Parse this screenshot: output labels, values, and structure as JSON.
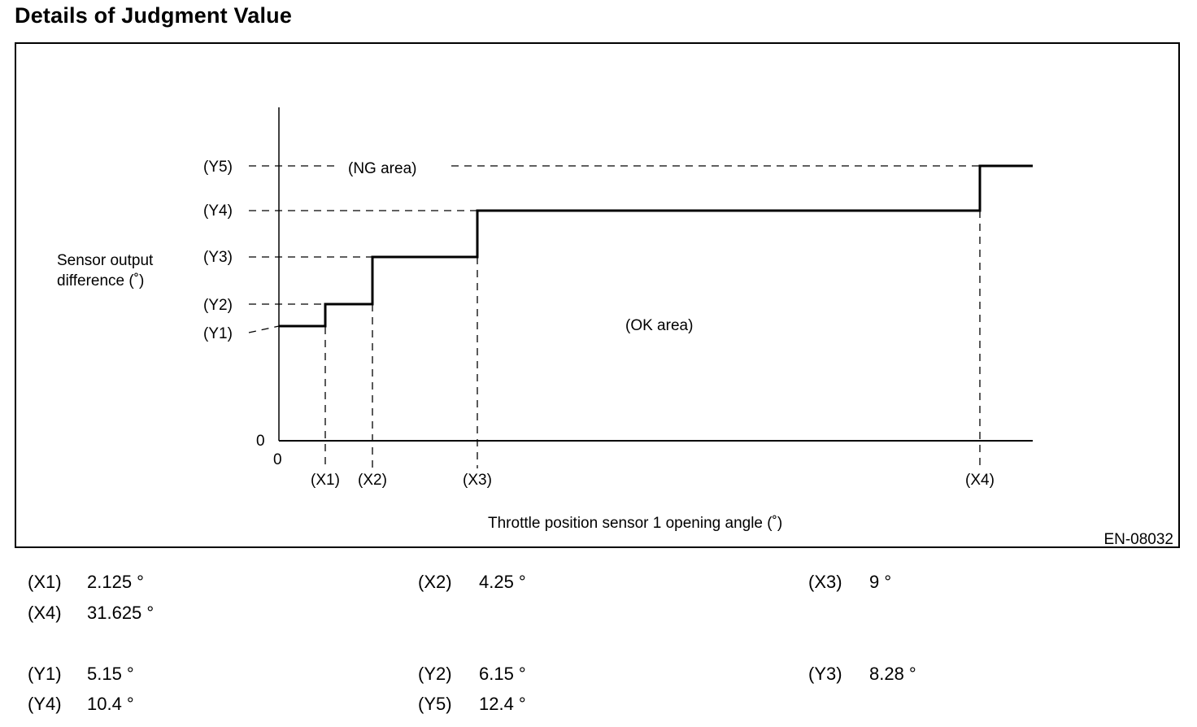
{
  "page": {
    "title": "Details of Judgment Value"
  },
  "diagram": {
    "y_axis_label_line1": "Sensor output",
    "y_axis_label_line2": "difference (˚)",
    "x_axis_label": "Throttle position sensor 1 opening angle (˚)",
    "origin_x_label": "0",
    "origin_y_label": "0",
    "ng_area_label": "(NG area)",
    "ok_area_label": "(OK area)",
    "figure_code": "EN-08032",
    "x_markers": [
      "(X1)",
      "(X2)",
      "(X3)",
      "(X4)"
    ],
    "y_markers": [
      "(Y1)",
      "(Y2)",
      "(Y3)",
      "(Y4)",
      "(Y5)"
    ]
  },
  "values": {
    "x": [
      {
        "label": "(X1)",
        "value": "2.125 °"
      },
      {
        "label": "(X2)",
        "value": "4.25 °"
      },
      {
        "label": "(X3)",
        "value": "9 °"
      },
      {
        "label": "(X4)",
        "value": "31.625 °"
      }
    ],
    "y": [
      {
        "label": "(Y1)",
        "value": "5.15 °"
      },
      {
        "label": "(Y2)",
        "value": "6.15 °"
      },
      {
        "label": "(Y3)",
        "value": "8.28 °"
      },
      {
        "label": "(Y4)",
        "value": "10.4 °"
      },
      {
        "label": "(Y5)",
        "value": "12.4 °"
      }
    ]
  }
}
